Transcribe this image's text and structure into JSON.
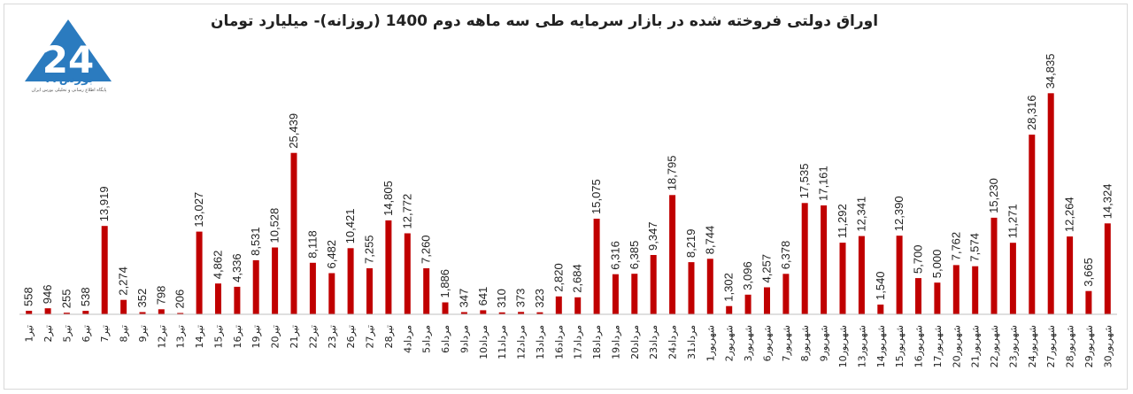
{
  "logo": {
    "name": "بورس۲۴",
    "tagline": "پایگاه اطلاع رسانی و تحلیلی بورس ایران",
    "color": "#2b7bbf"
  },
  "chart_data": {
    "type": "bar",
    "title": "اوراق دولتی فروخته شده در بازار سرمایه طی سه ماهه دوم 1400 (روزانه)- میلیارد تومان",
    "bar_color": "#c00000",
    "ylim": [
      0,
      36000
    ],
    "grid": false,
    "categories": [
      "1تیر",
      "2تیر",
      "5تیر",
      "6تیر",
      "7تیر",
      "8تیر",
      "9تیر",
      "12تیر",
      "13تیر",
      "14تیر",
      "15تیر",
      "16تیر",
      "19تیر",
      "20تیر",
      "21تیر",
      "22تیر",
      "23تیر",
      "26تیر",
      "27تیر",
      "28تیر",
      "4مرداد",
      "5مرداد",
      "6مرداد",
      "9مرداد",
      "10مرداد",
      "11مرداد",
      "12مرداد",
      "13مرداد",
      "16مرداد",
      "17مرداد",
      "18مرداد",
      "19مرداد",
      "20مرداد",
      "23مرداد",
      "24مرداد",
      "31مرداد",
      "1شهریور",
      "2شهریور",
      "3شهریور",
      "6شهریور",
      "7شهریور",
      "8شهریور",
      "9شهریور",
      "10شهریور",
      "13شهریور",
      "14شهریور",
      "15شهریور",
      "16شهریور",
      "17شهریور",
      "20شهریور",
      "21شهریور",
      "22شهریور",
      "23شهریور",
      "24شهریور",
      "27شهریور",
      "28شهریور",
      "29شهریور",
      "30شهریور"
    ],
    "values": [
      558,
      946,
      255,
      538,
      13919,
      2274,
      352,
      798,
      206,
      13027,
      4862,
      4336,
      8531,
      10528,
      25439,
      8118,
      6482,
      10421,
      7255,
      14805,
      12772,
      7260,
      1886,
      347,
      641,
      310,
      373,
      323,
      2820,
      2684,
      15075,
      6316,
      6385,
      9347,
      18795,
      8219,
      8744,
      1302,
      3096,
      4257,
      6378,
      17535,
      17161,
      11292,
      12341,
      1540,
      12390,
      5700,
      5000,
      7762,
      7574,
      15230,
      11271,
      28316,
      34835,
      12264,
      3665,
      14324
    ],
    "data_labels": [
      "558",
      "946",
      "255",
      "538",
      "13,919",
      "2,274",
      "352",
      "798",
      "206",
      "13,027",
      "4,862",
      "4,336",
      "8,531",
      "10,528",
      "25,439",
      "8,118",
      "6,482",
      "10,421",
      "7,255",
      "14,805",
      "12,772",
      "7,260",
      "1,886",
      "347",
      "641",
      "310",
      "373",
      "323",
      "2,820",
      "2,684",
      "15,075",
      "6,316",
      "6,385",
      "9,347",
      "18,795",
      "8,219",
      "8,744",
      "1,302",
      "3,096",
      "4,257",
      "6,378",
      "17,535",
      "17,161",
      "11,292",
      "12,341",
      "1,540",
      "12,390",
      "5,700",
      "5,000",
      "7,762",
      "7,574",
      "15,230",
      "11,271",
      "28,316",
      "34,835",
      "12,264",
      "3,665",
      "14,324"
    ]
  }
}
